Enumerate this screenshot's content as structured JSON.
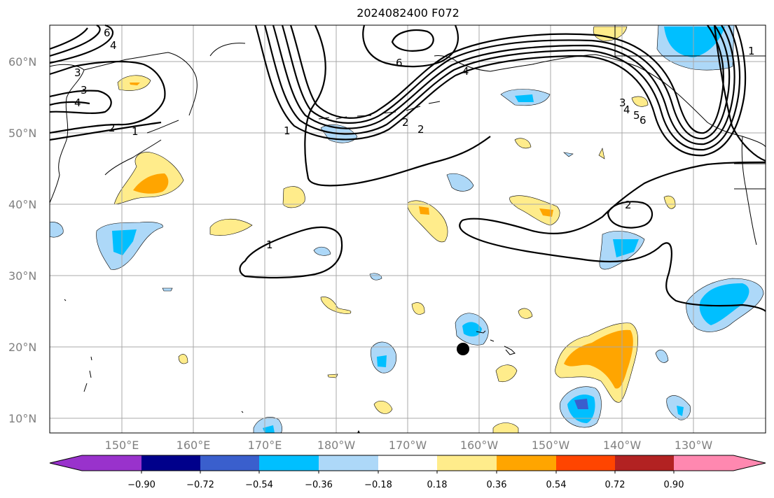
{
  "title": "2024082400 F072",
  "map": {
    "latitudes": [
      "10°N",
      "20°N",
      "30°N",
      "40°N",
      "50°N",
      "60°N"
    ],
    "longitudes": [
      "150°E",
      "160°E",
      "170°E",
      "180°W",
      "170°W",
      "160°W",
      "150°W",
      "140°W",
      "130°W"
    ],
    "contour_labels": [
      "6",
      "4",
      "3",
      "3",
      "4",
      "2",
      "1",
      "6",
      "4",
      "2",
      "2",
      "1",
      "1",
      "2",
      "3",
      "4",
      "5",
      "6",
      "1"
    ],
    "marker": "storm-position"
  },
  "colorbar": {
    "ticks": [
      "−0.90",
      "−0.72",
      "−0.54",
      "−0.36",
      "−0.18",
      "0.18",
      "0.36",
      "0.54",
      "0.72",
      "0.90"
    ],
    "colors": [
      "#9932cc",
      "#00008b",
      "#3a5fcd",
      "#00bfff",
      "#add8f8",
      "#ffffff",
      "#ffec8b",
      "#ffa500",
      "#ff4500",
      "#b22222",
      "#ff88b0"
    ]
  }
}
